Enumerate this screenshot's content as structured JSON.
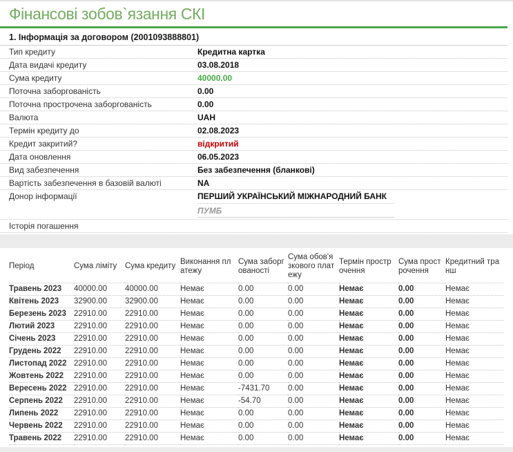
{
  "page": {
    "title": "Фінансові зобов`язання СКІ"
  },
  "contract": {
    "heading": "1. Інформація за договором (2001093888801)",
    "fields": [
      {
        "label": "Тип кредиту",
        "value": "Кредитна картка",
        "style": "bold"
      },
      {
        "label": "Дата видачі кредиту",
        "value": "03.08.2018",
        "style": "bold"
      },
      {
        "label": "Сума кредиту",
        "value": "40000.00",
        "style": "green"
      },
      {
        "label": "Поточна заборгованість",
        "value": "0.00",
        "style": "bold"
      },
      {
        "label": "Поточна прострочена заборгованість",
        "value": "0.00",
        "style": "bold"
      },
      {
        "label": "Валюта",
        "value": "UAH",
        "style": "bold"
      },
      {
        "label": "Термін кредиту до",
        "value": "02.08.2023",
        "style": "bold"
      },
      {
        "label": "Кредит закритий?",
        "value": "відкритий",
        "style": "red"
      },
      {
        "label": "Дата оновлення",
        "value": "06.05.2023",
        "style": "bold"
      },
      {
        "label": "Вид забезпечення",
        "value": "Без забезпечення (бланкові)",
        "style": "bold"
      },
      {
        "label": "Вартість забезпечення в базовій валюті",
        "value": "NA",
        "style": "bold"
      },
      {
        "label": "Донор інформації",
        "value": "ПЕРШИЙ УКРАЇНСЬКИЙ МІЖНАРОДНИЙ БАНК",
        "subvalue": "ПУМБ",
        "style": "donor"
      },
      {
        "label": "Історія погашення",
        "value": "",
        "style": "empty"
      }
    ]
  },
  "history_table": {
    "columns": [
      "Період",
      "Сума ліміту",
      "Сума кредиту",
      "Виконання платежу",
      "Сума заборгованості",
      "Сума обов'язкового платежу",
      "Термін прострочення",
      "Сума прострочення",
      "Кредитний транш"
    ],
    "rows": [
      [
        "Травень 2023",
        "40000.00",
        "40000.00",
        "Немає",
        "0.00",
        "0.00",
        "Немає",
        "0.00",
        "Немає"
      ],
      [
        "Квітень 2023",
        "32900.00",
        "32900.00",
        "Немає",
        "0.00",
        "0.00",
        "Немає",
        "0.00",
        "Немає"
      ],
      [
        "Березень 2023",
        "22910.00",
        "22910.00",
        "Немає",
        "0.00",
        "0.00",
        "Немає",
        "0.00",
        "Немає"
      ],
      [
        "Лютий 2023",
        "22910.00",
        "22910.00",
        "Немає",
        "0.00",
        "0.00",
        "Немає",
        "0.00",
        "Немає"
      ],
      [
        "Січень 2023",
        "22910.00",
        "22910.00",
        "Немає",
        "0.00",
        "0.00",
        "Немає",
        "0.00",
        "Немає"
      ],
      [
        "Грудень 2022",
        "22910.00",
        "22910.00",
        "Немає",
        "0.00",
        "0.00",
        "Немає",
        "0.00",
        "Немає"
      ],
      [
        "Листопад 2022",
        "22910.00",
        "22910.00",
        "Немає",
        "0.00",
        "0.00",
        "Немає",
        "0.00",
        "Немає"
      ],
      [
        "Жовтень 2022",
        "22910.00",
        "22910.00",
        "Немає",
        "0.00",
        "0.00",
        "Немає",
        "0.00",
        "Немає"
      ],
      [
        "Вересень 2022",
        "22910.00",
        "22910.00",
        "Немає",
        "-7431.70",
        "0.00",
        "Немає",
        "0.00",
        "Немає"
      ],
      [
        "Серпень 2022",
        "22910.00",
        "22910.00",
        "Немає",
        "-54.70",
        "0.00",
        "Немає",
        "0.00",
        "Немає"
      ],
      [
        "Липень 2022",
        "22910.00",
        "22910.00",
        "Немає",
        "0.00",
        "0.00",
        "Немає",
        "0.00",
        "Немає"
      ],
      [
        "Червень 2022",
        "22910.00",
        "22910.00",
        "Немає",
        "0.00",
        "0.00",
        "Немає",
        "0.00",
        "Немає"
      ],
      [
        "Травень 2022",
        "22910.00",
        "22910.00",
        "Немає",
        "0.00",
        "0.00",
        "Немає",
        "0.00",
        "Немає"
      ]
    ]
  },
  "colors": {
    "title_green": "#72ad5e",
    "rule_green": "#4ba64b",
    "value_green": "#44ac44",
    "table_green": "#2d9f2d",
    "alert_red": "#c40000",
    "muted_gray": "#9b9b9b"
  }
}
